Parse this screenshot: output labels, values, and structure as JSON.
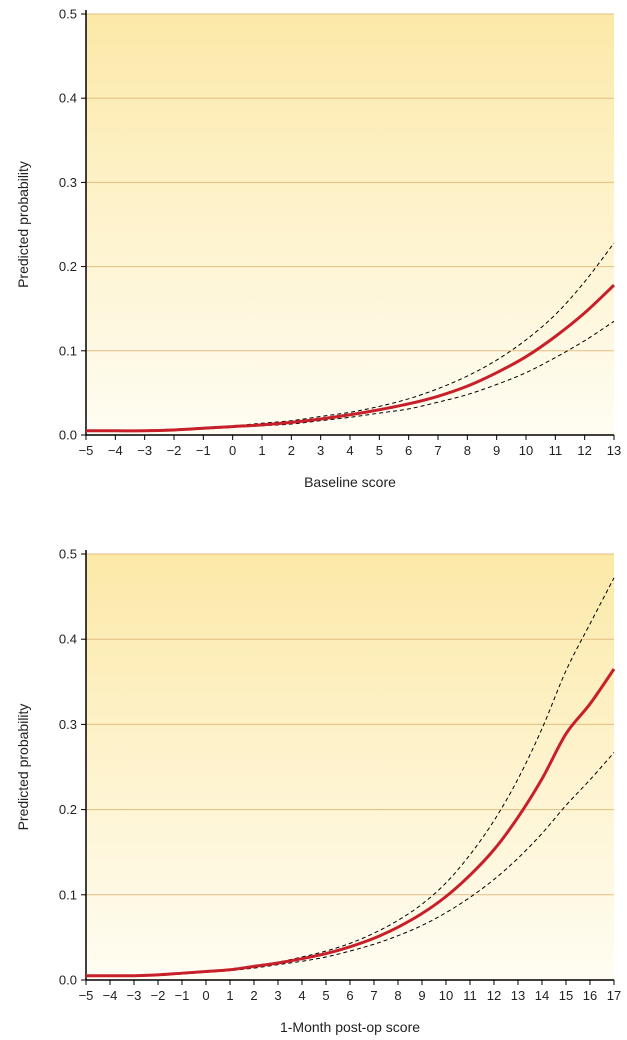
{
  "colors": {
    "background_top": "#FCE9A8",
    "background_bottom": "#FFFDF3",
    "gridline": "#E3BE82",
    "axis": "#000000",
    "fit_line": "#C8202B",
    "ci_line": "#000000"
  },
  "chart_data": [
    {
      "type": "line",
      "xlabel": "Baseline score",
      "ylabel": "Predicted probability",
      "xlim": [
        -5,
        13
      ],
      "ylim": [
        0,
        0.5
      ],
      "x_ticks": [
        -5,
        -4,
        -3,
        -2,
        -1,
        0,
        1,
        2,
        3,
        4,
        5,
        6,
        7,
        8,
        9,
        10,
        11,
        12,
        13
      ],
      "y_ticks": [
        0.0,
        0.1,
        0.2,
        0.3,
        0.4,
        0.5
      ],
      "y_tick_labels": [
        "0.0",
        "0.1",
        "0.2",
        "0.3",
        "0.4",
        "0.5"
      ],
      "grid": true,
      "x": [
        -5,
        -4,
        -3,
        -2,
        -1,
        0,
        1,
        2,
        3,
        4,
        5,
        6,
        7,
        8,
        9,
        10,
        11,
        12,
        13
      ],
      "series": [
        {
          "style": "solid",
          "values": [
            0.005,
            0.005,
            0.005,
            0.006,
            0.008,
            0.01,
            0.012,
            0.015,
            0.019,
            0.024,
            0.03,
            0.037,
            0.046,
            0.058,
            0.074,
            0.093,
            0.117,
            0.145,
            0.178
          ]
        },
        {
          "style": "dashed",
          "values": [
            0.005,
            0.005,
            0.006,
            0.007,
            0.009,
            0.011,
            0.014,
            0.017,
            0.022,
            0.027,
            0.034,
            0.043,
            0.055,
            0.07,
            0.089,
            0.113,
            0.143,
            0.182,
            0.228
          ]
        },
        {
          "style": "dashed",
          "values": [
            0.005,
            0.005,
            0.005,
            0.006,
            0.007,
            0.009,
            0.011,
            0.013,
            0.017,
            0.021,
            0.026,
            0.031,
            0.039,
            0.048,
            0.06,
            0.074,
            0.092,
            0.112,
            0.135
          ]
        }
      ]
    },
    {
      "type": "line",
      "xlabel": "1-Month post-op score",
      "ylabel": "Predicted probability",
      "xlim": [
        -5,
        17
      ],
      "ylim": [
        0,
        0.5
      ],
      "x_ticks": [
        -5,
        -4,
        -3,
        -2,
        -1,
        0,
        1,
        2,
        3,
        4,
        5,
        6,
        7,
        8,
        9,
        10,
        11,
        12,
        13,
        14,
        15,
        16,
        17
      ],
      "y_ticks": [
        0.0,
        0.1,
        0.2,
        0.3,
        0.4,
        0.5
      ],
      "y_tick_labels": [
        "0.0",
        "0.1",
        "0.2",
        "0.3",
        "0.4",
        "0.5"
      ],
      "grid": true,
      "x": [
        -5,
        -4,
        -3,
        -2,
        -1,
        0,
        1,
        2,
        3,
        4,
        5,
        6,
        7,
        8,
        9,
        10,
        11,
        12,
        13,
        14,
        15,
        16,
        17
      ],
      "series": [
        {
          "style": "solid",
          "values": [
            0.005,
            0.005,
            0.005,
            0.006,
            0.008,
            0.01,
            0.012,
            0.016,
            0.02,
            0.025,
            0.031,
            0.039,
            0.049,
            0.062,
            0.078,
            0.098,
            0.123,
            0.153,
            0.191,
            0.236,
            0.289,
            0.324,
            0.365
          ]
        },
        {
          "style": "dashed",
          "values": [
            0.005,
            0.005,
            0.005,
            0.006,
            0.008,
            0.01,
            0.013,
            0.017,
            0.021,
            0.027,
            0.034,
            0.043,
            0.055,
            0.07,
            0.089,
            0.114,
            0.147,
            0.187,
            0.236,
            0.295,
            0.363,
            0.418,
            0.472
          ]
        },
        {
          "style": "dashed",
          "values": [
            0.005,
            0.005,
            0.005,
            0.006,
            0.007,
            0.009,
            0.011,
            0.014,
            0.018,
            0.022,
            0.027,
            0.034,
            0.042,
            0.052,
            0.064,
            0.079,
            0.097,
            0.118,
            0.143,
            0.172,
            0.205,
            0.235,
            0.267
          ]
        }
      ]
    }
  ]
}
